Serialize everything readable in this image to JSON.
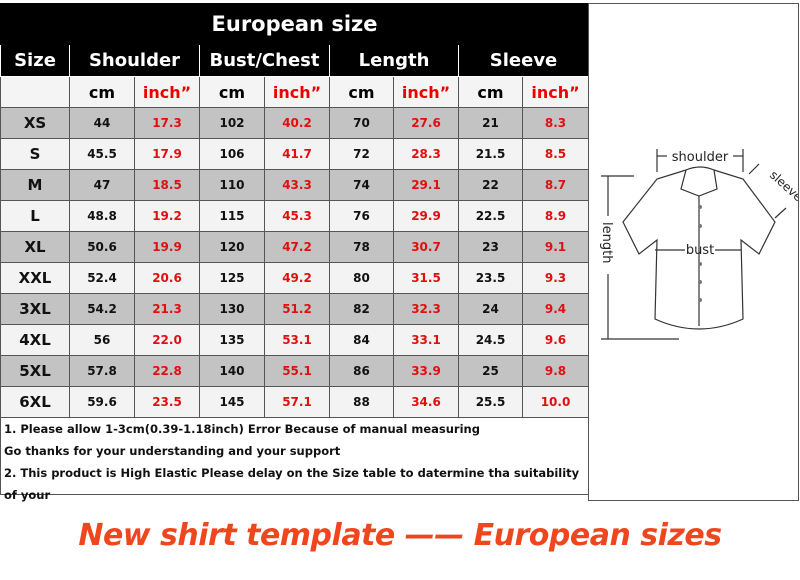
{
  "title": "European size",
  "headers": [
    "Size",
    "Shoulder",
    "Bust/Chest",
    "Length",
    "Sleeve"
  ],
  "units": {
    "cm": "cm",
    "inch": "inch”"
  },
  "rows": [
    [
      "XS",
      "44",
      "17.3",
      "102",
      "40.2",
      "70",
      "27.6",
      "21",
      "8.3"
    ],
    [
      "S",
      "45.5",
      "17.9",
      "106",
      "41.7",
      "72",
      "28.3",
      "21.5",
      "8.5"
    ],
    [
      "M",
      "47",
      "18.5",
      "110",
      "43.3",
      "74",
      "29.1",
      "22",
      "8.7"
    ],
    [
      "L",
      "48.8",
      "19.2",
      "115",
      "45.3",
      "76",
      "29.9",
      "22.5",
      "8.9"
    ],
    [
      "XL",
      "50.6",
      "19.9",
      "120",
      "47.2",
      "78",
      "30.7",
      "23",
      "9.1"
    ],
    [
      "XXL",
      "52.4",
      "20.6",
      "125",
      "49.2",
      "80",
      "31.5",
      "23.5",
      "9.3"
    ],
    [
      "3XL",
      "54.2",
      "21.3",
      "130",
      "51.2",
      "82",
      "32.3",
      "24",
      "9.4"
    ],
    [
      "4XL",
      "56",
      "22.0",
      "135",
      "53.1",
      "84",
      "33.1",
      "24.5",
      "9.6"
    ],
    [
      "5XL",
      "57.8",
      "22.8",
      "140",
      "55.1",
      "86",
      "33.9",
      "25",
      "9.8"
    ],
    [
      "6XL",
      "59.6",
      "23.5",
      "145",
      "57.1",
      "88",
      "34.6",
      "25.5",
      "10.0"
    ]
  ],
  "notes": [
    "1. Please allow 1-3cm(0.39-1.18inch) Error Because of manual measuring",
    "Go thanks for your understanding and your support",
    "2. This product is High Elastic  Please delay on the Size table to datermine tha suitability of your"
  ],
  "diagram": {
    "shoulder": "shoulder",
    "sleeve": "sleeve",
    "length": "length",
    "bust": "bust"
  },
  "bottom_caption": "New shirt template —— European sizes",
  "colors": {
    "inch_text": "#e01010",
    "caption": "#f0461e",
    "header_bg": "#000000",
    "row_dark": "#c3c3c3",
    "row_light": "#f3f3f3"
  }
}
